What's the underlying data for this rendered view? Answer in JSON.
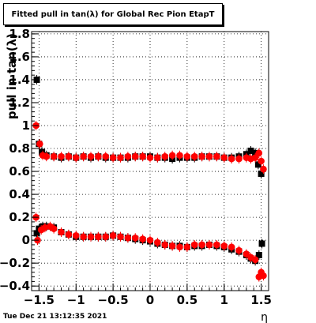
{
  "chart_data": {
    "type": "scatter",
    "title": "Fitted pull in tan(λ) for Global Rec Pion EtapT",
    "xlabel": "η",
    "ylabel": "pull in tan(λ)",
    "xlim": [
      -1.6,
      1.6
    ],
    "ylim": [
      -0.44,
      1.82
    ],
    "grid": true,
    "x_ticks": [
      -1.5,
      -1,
      -0.5,
      0,
      0.5,
      1,
      1.5
    ],
    "x_tick_labels": [
      "−1.5",
      "−1",
      "−0.5",
      "0",
      "0.5",
      "1",
      "1.5"
    ],
    "y_ticks": [
      -0.4,
      -0.2,
      0,
      0.2,
      0.4,
      0.6,
      0.8,
      1,
      1.2,
      1.4,
      1.6,
      1.8
    ],
    "y_tick_labels": [
      "−0.4",
      "−0.2",
      "0",
      "0.2",
      "0.4",
      "0.6",
      "0.8",
      "1",
      "1.2",
      "1.4",
      "1.6",
      "1.8"
    ],
    "series": [
      {
        "name": "",
        "color": "#000000",
        "marker": "square",
        "points": [
          [
            -1.53,
            1.4
          ],
          [
            -1.5,
            0.84
          ],
          [
            -1.46,
            0.77
          ],
          [
            -1.4,
            0.74
          ],
          [
            -1.3,
            0.73
          ],
          [
            -1.2,
            0.72
          ],
          [
            -1.1,
            0.73
          ],
          [
            -1.0,
            0.72
          ],
          [
            -0.9,
            0.73
          ],
          [
            -0.8,
            0.72
          ],
          [
            -0.7,
            0.73
          ],
          [
            -0.6,
            0.72
          ],
          [
            -0.5,
            0.72
          ],
          [
            -0.4,
            0.72
          ],
          [
            -0.3,
            0.72
          ],
          [
            -0.2,
            0.73
          ],
          [
            -0.1,
            0.73
          ],
          [
            0.0,
            0.73
          ],
          [
            0.1,
            0.72
          ],
          [
            0.2,
            0.72
          ],
          [
            0.3,
            0.71
          ],
          [
            0.4,
            0.72
          ],
          [
            0.5,
            0.72
          ],
          [
            0.6,
            0.72
          ],
          [
            0.7,
            0.73
          ],
          [
            0.8,
            0.73
          ],
          [
            0.9,
            0.73
          ],
          [
            1.0,
            0.72
          ],
          [
            1.1,
            0.72
          ],
          [
            1.2,
            0.73
          ],
          [
            1.3,
            0.75
          ],
          [
            1.36,
            0.78
          ],
          [
            1.42,
            0.76
          ],
          [
            1.46,
            0.66
          ],
          [
            1.5,
            0.58
          ],
          [
            -1.53,
            0.06
          ],
          [
            -1.5,
            0.1
          ],
          [
            -1.45,
            0.12
          ],
          [
            -1.4,
            0.12
          ],
          [
            -1.3,
            0.11
          ],
          [
            -1.2,
            0.07
          ],
          [
            -1.1,
            0.05
          ],
          [
            -1.0,
            0.03
          ],
          [
            -0.9,
            0.03
          ],
          [
            -0.8,
            0.03
          ],
          [
            -0.7,
            0.03
          ],
          [
            -0.6,
            0.03
          ],
          [
            -0.5,
            0.04
          ],
          [
            -0.4,
            0.03
          ],
          [
            -0.3,
            0.02
          ],
          [
            -0.2,
            0.01
          ],
          [
            -0.1,
            0.0
          ],
          [
            0.0,
            -0.01
          ],
          [
            0.1,
            -0.03
          ],
          [
            0.2,
            -0.04
          ],
          [
            0.3,
            -0.05
          ],
          [
            0.4,
            -0.05
          ],
          [
            0.5,
            -0.06
          ],
          [
            0.6,
            -0.05
          ],
          [
            0.7,
            -0.05
          ],
          [
            0.8,
            -0.04
          ],
          [
            0.9,
            -0.05
          ],
          [
            1.0,
            -0.06
          ],
          [
            1.1,
            -0.08
          ],
          [
            1.2,
            -0.1
          ],
          [
            1.3,
            -0.13
          ],
          [
            1.36,
            -0.16
          ],
          [
            1.42,
            -0.18
          ],
          [
            1.47,
            -0.13
          ],
          [
            1.51,
            -0.03
          ]
        ]
      },
      {
        "name": "",
        "color": "#ff0000",
        "marker": "circle",
        "points": [
          [
            -1.54,
            1.0
          ],
          [
            -1.49,
            0.84
          ],
          [
            -1.45,
            0.74
          ],
          [
            -1.4,
            0.73
          ],
          [
            -1.3,
            0.73
          ],
          [
            -1.2,
            0.73
          ],
          [
            -1.1,
            0.73
          ],
          [
            -1.0,
            0.72
          ],
          [
            -0.9,
            0.73
          ],
          [
            -0.8,
            0.73
          ],
          [
            -0.7,
            0.73
          ],
          [
            -0.6,
            0.73
          ],
          [
            -0.5,
            0.72
          ],
          [
            -0.4,
            0.72
          ],
          [
            -0.3,
            0.73
          ],
          [
            -0.2,
            0.73
          ],
          [
            -0.1,
            0.73
          ],
          [
            0.0,
            0.72
          ],
          [
            0.1,
            0.72
          ],
          [
            0.2,
            0.73
          ],
          [
            0.3,
            0.74
          ],
          [
            0.4,
            0.74
          ],
          [
            0.5,
            0.73
          ],
          [
            0.6,
            0.73
          ],
          [
            0.7,
            0.73
          ],
          [
            0.8,
            0.73
          ],
          [
            0.9,
            0.73
          ],
          [
            1.0,
            0.72
          ],
          [
            1.1,
            0.71
          ],
          [
            1.2,
            0.71
          ],
          [
            1.3,
            0.72
          ],
          [
            1.36,
            0.71
          ],
          [
            1.42,
            0.72
          ],
          [
            1.47,
            0.76
          ],
          [
            1.5,
            0.69
          ],
          [
            1.53,
            0.62
          ],
          [
            -1.54,
            0.2
          ],
          [
            -1.52,
            0.0
          ],
          [
            -1.47,
            0.09
          ],
          [
            -1.42,
            0.11
          ],
          [
            -1.35,
            0.12
          ],
          [
            -1.3,
            0.1
          ],
          [
            -1.2,
            0.07
          ],
          [
            -1.1,
            0.05
          ],
          [
            -1.0,
            0.04
          ],
          [
            -0.9,
            0.03
          ],
          [
            -0.8,
            0.03
          ],
          [
            -0.7,
            0.03
          ],
          [
            -0.6,
            0.03
          ],
          [
            -0.5,
            0.04
          ],
          [
            -0.4,
            0.03
          ],
          [
            -0.3,
            0.02
          ],
          [
            -0.2,
            0.02
          ],
          [
            -0.1,
            0.01
          ],
          [
            0.0,
            0.0
          ],
          [
            0.1,
            -0.02
          ],
          [
            0.2,
            -0.04
          ],
          [
            0.3,
            -0.05
          ],
          [
            0.4,
            -0.06
          ],
          [
            0.5,
            -0.06
          ],
          [
            0.6,
            -0.04
          ],
          [
            0.7,
            -0.04
          ],
          [
            0.8,
            -0.04
          ],
          [
            0.9,
            -0.04
          ],
          [
            1.0,
            -0.05
          ],
          [
            1.1,
            -0.06
          ],
          [
            1.2,
            -0.09
          ],
          [
            1.3,
            -0.12
          ],
          [
            1.36,
            -0.15
          ],
          [
            1.42,
            -0.17
          ],
          [
            1.47,
            -0.32
          ],
          [
            1.5,
            -0.28
          ],
          [
            1.53,
            -0.31
          ]
        ]
      }
    ]
  },
  "footer": {
    "datestamp": "Tue Dec 21 13:12:35 2021"
  }
}
